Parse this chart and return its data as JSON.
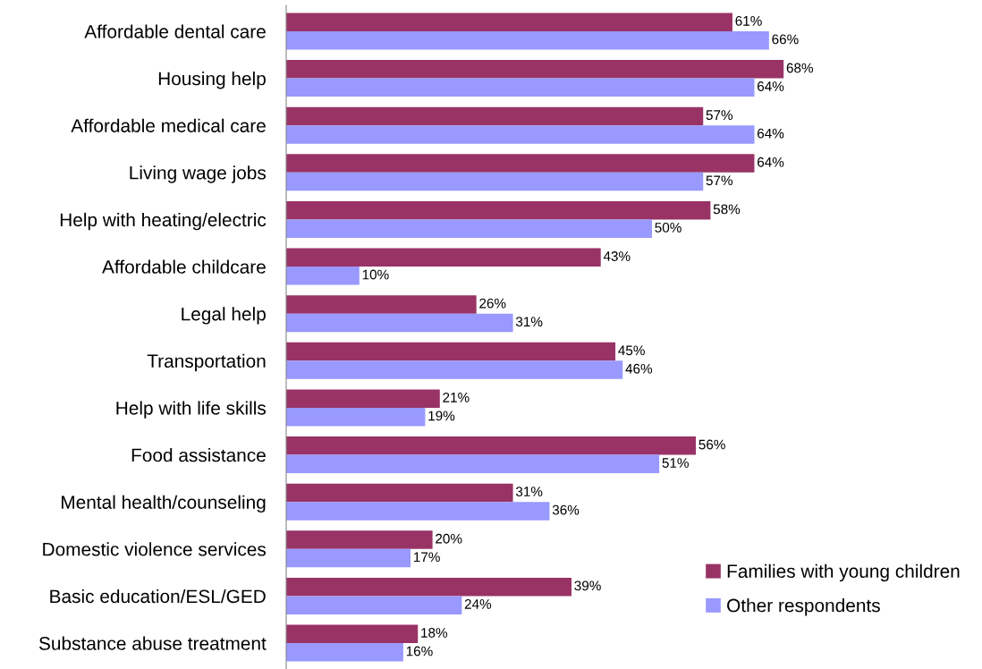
{
  "chart_data": {
    "type": "bar",
    "orientation": "horizontal",
    "categories": [
      "Affordable dental care",
      "Housing help",
      "Affordable medical care",
      "Living wage jobs",
      "Help with heating/electric",
      "Affordable childcare",
      "Legal help",
      "Transportation",
      "Help with life skills",
      "Food assistance",
      "Mental health/counseling",
      "Domestic violence services",
      "Basic education/ESL/GED",
      "Substance abuse treatment"
    ],
    "series": [
      {
        "name": "Families with young children",
        "color": "#993366",
        "values": [
          61,
          68,
          57,
          64,
          58,
          43,
          26,
          45,
          21,
          56,
          31,
          20,
          39,
          18
        ],
        "value_labels": [
          "61%",
          "68%",
          "57%",
          "64%",
          "58%",
          "43%",
          "26%",
          "45%",
          "21%",
          "56%",
          "31%",
          "20%",
          "39%",
          "18%"
        ]
      },
      {
        "name": "Other respondents",
        "color": "#9999ff",
        "values": [
          66,
          64,
          64,
          57,
          50,
          10,
          31,
          46,
          19,
          51,
          36,
          17,
          24,
          16
        ],
        "value_labels": [
          "66%",
          "64%",
          "64%",
          "57%",
          "50%",
          "10%",
          "31%",
          "46%",
          "19%",
          "51%",
          "36%",
          "17%",
          "24%",
          "16%"
        ]
      }
    ],
    "legend": "bottom right",
    "grid": false
  }
}
